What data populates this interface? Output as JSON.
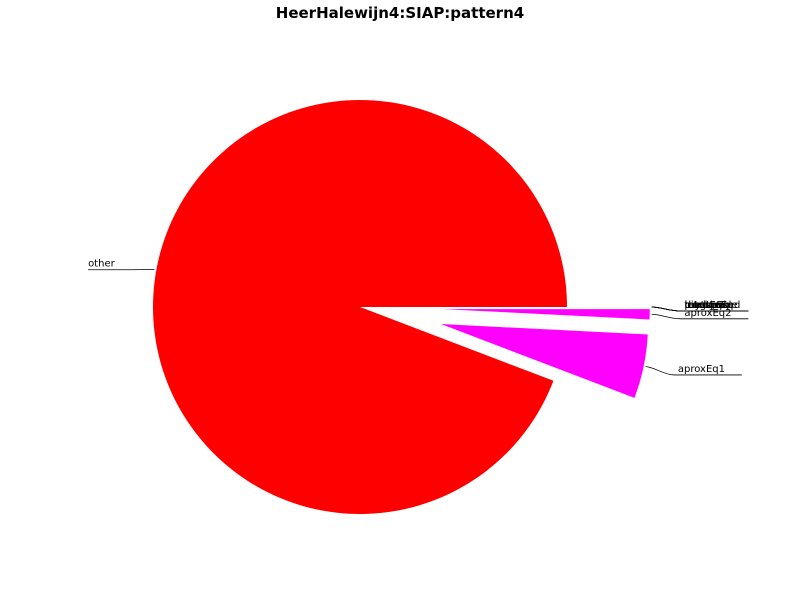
{
  "chart_data": {
    "type": "pie",
    "title": "HeerHalewijn4:SIAP:pattern4",
    "slices": [
      {
        "label": "other",
        "value": 94.2,
        "color": "#ff0000",
        "exploded": false
      },
      {
        "label": "aproxEq1",
        "value": 5.0,
        "color": "#ff00ff",
        "exploded": true
      },
      {
        "label": "aproxEq2",
        "value": 0.8,
        "color": "#ff00ff",
        "exploded": true
      },
      {
        "label": "lengthEq",
        "value": 0.0,
        "color": "#ff00ff",
        "exploded": true
      },
      {
        "label": "inverted",
        "value": 0.0,
        "color": "#ff00ff",
        "exploded": true
      },
      {
        "label": "retrograde",
        "value": 0.0,
        "color": "#ff00ff",
        "exploded": true
      },
      {
        "label": "rhythmEq",
        "value": 0.0,
        "color": "#ff00ff",
        "exploded": true
      },
      {
        "label": "pitchEq",
        "value": 0.0,
        "color": "#ff00ff",
        "exploded": true
      },
      {
        "label": "transposed",
        "value": 0.0,
        "color": "#ff00ff",
        "exploded": true
      }
    ],
    "legend": "none"
  }
}
